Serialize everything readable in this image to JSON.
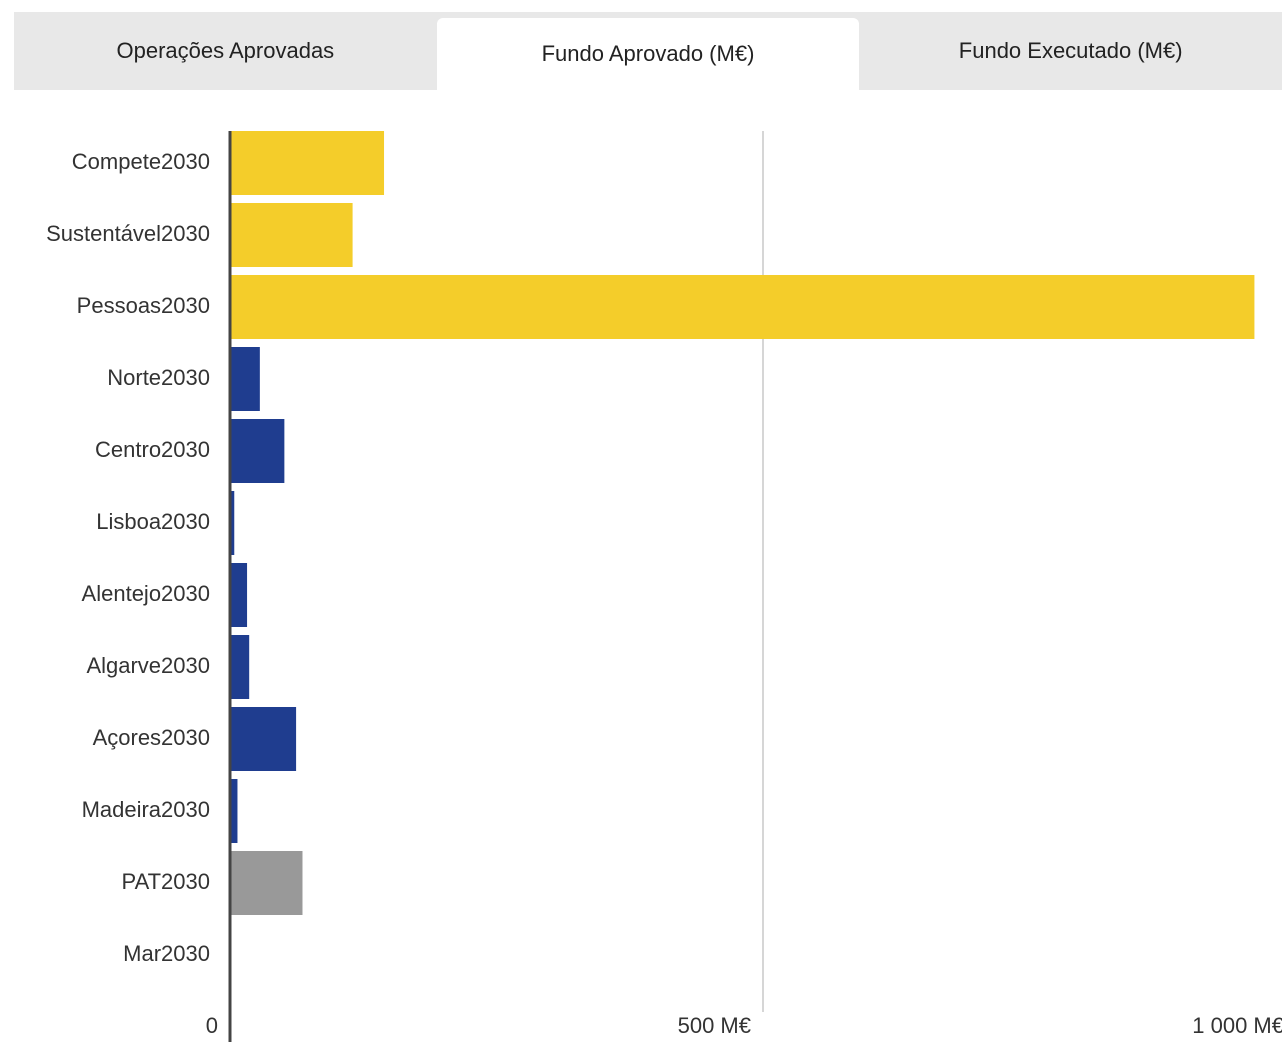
{
  "tabs": [
    "Operações Aprovadas",
    "Fundo Aprovado (M€)",
    "Fundo Executado (M€)"
  ],
  "active_tab": 1,
  "chart_data": {
    "type": "bar",
    "orientation": "horizontal",
    "categories": [
      "Compete2030",
      "Sustentável2030",
      "Pessoas2030",
      "Norte2030",
      "Centro2030",
      "Lisboa2030",
      "Alentejo2030",
      "Algarve2030",
      "Açores2030",
      "Madeira2030",
      "PAT2030",
      "Mar2030"
    ],
    "values": [
      144.5,
      115,
      961,
      28,
      51,
      4,
      16,
      18,
      62,
      7,
      68,
      0
    ],
    "colors": [
      "#f4cd2a",
      "#f4cd2a",
      "#f4cd2a",
      "#1f3d8f",
      "#1f3d8f",
      "#1f3d8f",
      "#1f3d8f",
      "#1f3d8f",
      "#1f3d8f",
      "#1f3d8f",
      "#999999",
      "#999999"
    ],
    "xlim": [
      0,
      1000
    ],
    "xticks": [
      0,
      {
        "value": 500,
        "label": "500 M€"
      },
      {
        "value": 1000,
        "label": "1 000 M€"
      }
    ],
    "grid": true
  }
}
